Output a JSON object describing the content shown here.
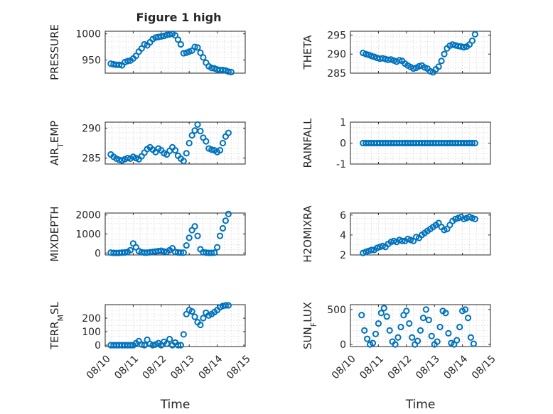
{
  "chart_data": [
    {
      "id": "pressure",
      "type": "scatter",
      "title": "Figure 1 high",
      "ylabel": "PRESSURE",
      "xlabel": "",
      "ylim": [
        925,
        1005
      ],
      "yticks": [
        950,
        1000
      ],
      "ytick_labels": [
        "950",
        "1000"
      ],
      "xlim": [
        0,
        5
      ],
      "xticks": [
        0,
        1,
        2,
        3,
        4,
        5
      ],
      "x": [
        0.2,
        0.3,
        0.4,
        0.5,
        0.6,
        0.7,
        0.8,
        0.9,
        1.0,
        1.1,
        1.2,
        1.3,
        1.4,
        1.5,
        1.6,
        1.7,
        1.8,
        1.9,
        2.0,
        2.1,
        2.2,
        2.3,
        2.4,
        2.5,
        2.6,
        2.7,
        2.8,
        2.9,
        3.0,
        3.1,
        3.2,
        3.3,
        3.4,
        3.5,
        3.6,
        3.7,
        3.8,
        3.9,
        4.0,
        4.1,
        4.2,
        4.3,
        4.4,
        4.5
      ],
      "y": [
        943,
        942,
        941,
        941,
        940,
        946,
        948,
        949,
        953,
        958,
        966,
        972,
        980,
        978,
        984,
        990,
        993,
        994,
        995,
        996,
        998,
        999,
        1000,
        997,
        989,
        980,
        963,
        964,
        966,
        968,
        975,
        974,
        964,
        955,
        945,
        938,
        935,
        934,
        932,
        931,
        931,
        930,
        928,
        927
      ],
      "color": "#0072BD"
    },
    {
      "id": "theta",
      "type": "scatter",
      "title": "",
      "ylabel": "THETA",
      "xlabel": "",
      "ylim": [
        285,
        296
      ],
      "yticks": [
        285,
        290,
        295
      ],
      "ytick_labels": [
        "285",
        "290",
        "295"
      ],
      "xlim": [
        0,
        5
      ],
      "xticks": [
        0,
        1,
        2,
        3,
        4,
        5
      ],
      "x": [
        0.45,
        0.55,
        0.65,
        0.75,
        0.85,
        0.95,
        1.05,
        1.15,
        1.25,
        1.35,
        1.45,
        1.55,
        1.65,
        1.75,
        1.85,
        1.95,
        2.05,
        2.15,
        2.25,
        2.35,
        2.45,
        2.55,
        2.65,
        2.75,
        2.85,
        2.95,
        3.05,
        3.15,
        3.25,
        3.35,
        3.45,
        3.55,
        3.65,
        3.75,
        3.85,
        3.95,
        4.05,
        4.15,
        4.25,
        4.35,
        4.45
      ],
      "y": [
        290.3,
        290.0,
        289.8,
        289.5,
        289.3,
        289.0,
        288.8,
        288.9,
        288.7,
        288.5,
        288.6,
        288.3,
        288.0,
        288.4,
        288.2,
        287.5,
        287.0,
        286.6,
        286.2,
        286.4,
        286.8,
        287.0,
        286.5,
        286.2,
        285.5,
        285.2,
        286.0,
        286.7,
        288.2,
        290.0,
        291.5,
        292.2,
        292.5,
        292.3,
        292.1,
        292.0,
        291.8,
        292.0,
        292.5,
        293.5,
        295.2
      ],
      "color": "#0072BD"
    },
    {
      "id": "air_temp",
      "type": "scatter",
      "title": "",
      "ylabel_main": "AIR",
      "ylabel_sub": "T",
      "ylabel_rest": "EMP",
      "xlabel": "",
      "ylim": [
        284,
        291
      ],
      "yticks": [
        285,
        290
      ],
      "ytick_labels": [
        "285",
        "290"
      ],
      "xlim": [
        0,
        5
      ],
      "xticks": [
        0,
        1,
        2,
        3,
        4,
        5
      ],
      "x": [
        0.2,
        0.3,
        0.4,
        0.5,
        0.6,
        0.7,
        0.8,
        0.9,
        1.0,
        1.1,
        1.2,
        1.3,
        1.4,
        1.5,
        1.6,
        1.7,
        1.8,
        1.9,
        2.0,
        2.1,
        2.2,
        2.3,
        2.4,
        2.5,
        2.6,
        2.7,
        2.8,
        2.9,
        3.0,
        3.1,
        3.2,
        3.3,
        3.4,
        3.5,
        3.6,
        3.7,
        3.8,
        3.9,
        4.0,
        4.1,
        4.2,
        4.3,
        4.4
      ],
      "y": [
        285.6,
        285.2,
        284.9,
        284.7,
        284.6,
        284.8,
        285.0,
        284.9,
        285.2,
        285.0,
        284.8,
        285.3,
        285.9,
        286.5,
        286.8,
        286.4,
        286.0,
        286.6,
        286.3,
        285.8,
        285.6,
        286.2,
        286.8,
        286.3,
        285.4,
        284.9,
        284.5,
        285.8,
        287.5,
        288.8,
        289.6,
        290.6,
        289.5,
        288.4,
        287.8,
        286.6,
        286.4,
        286.3,
        286.0,
        286.3,
        287.5,
        288.6,
        289.2
      ],
      "color": "#0072BD"
    },
    {
      "id": "rainfall",
      "type": "scatter",
      "title": "",
      "ylabel": "RAINFALL",
      "xlabel": "",
      "ylim": [
        -1,
        1
      ],
      "yticks": [
        -1,
        0,
        1
      ],
      "ytick_labels": [
        "-1",
        "0",
        "1"
      ],
      "xlim": [
        0,
        5
      ],
      "xticks": [
        0,
        1,
        2,
        3,
        4,
        5
      ],
      "x": [
        0.45,
        0.55,
        0.65,
        0.75,
        0.85,
        0.95,
        1.05,
        1.15,
        1.25,
        1.35,
        1.45,
        1.55,
        1.65,
        1.75,
        1.85,
        1.95,
        2.05,
        2.15,
        2.25,
        2.35,
        2.45,
        2.55,
        2.65,
        2.75,
        2.85,
        2.95,
        3.05,
        3.15,
        3.25,
        3.35,
        3.45,
        3.55,
        3.65,
        3.75,
        3.85,
        3.95,
        4.05,
        4.15,
        4.25,
        4.35,
        4.45
      ],
      "y": [
        0,
        0,
        0,
        0,
        0,
        0,
        0,
        0,
        0,
        0,
        0,
        0,
        0,
        0,
        0,
        0,
        0,
        0,
        0,
        0,
        0,
        0,
        0,
        0,
        0,
        0,
        0,
        0,
        0,
        0,
        0,
        0,
        0,
        0,
        0,
        0,
        0,
        0,
        0,
        0,
        0
      ],
      "color": "#0072BD"
    },
    {
      "id": "mixdepth",
      "type": "scatter",
      "title": "",
      "ylabel": "MIXDEPTH",
      "xlabel": "",
      "ylim": [
        -100,
        2100
      ],
      "yticks": [
        0,
        1000,
        2000
      ],
      "ytick_labels": [
        "0",
        "1000",
        "2000"
      ],
      "xlim": [
        0,
        5
      ],
      "xticks": [
        0,
        1,
        2,
        3,
        4,
        5
      ],
      "x": [
        0.2,
        0.3,
        0.4,
        0.5,
        0.6,
        0.7,
        0.8,
        0.9,
        1.0,
        1.1,
        1.2,
        1.3,
        1.4,
        1.5,
        1.6,
        1.7,
        1.8,
        1.9,
        2.0,
        2.1,
        2.2,
        2.3,
        2.4,
        2.5,
        2.6,
        2.7,
        2.8,
        2.9,
        3.0,
        3.1,
        3.2,
        3.3,
        3.4,
        3.5,
        3.6,
        3.7,
        3.8,
        3.9,
        4.0,
        4.1,
        4.2,
        4.3,
        4.4
      ],
      "y": [
        20,
        10,
        5,
        10,
        20,
        30,
        60,
        150,
        500,
        300,
        100,
        40,
        20,
        20,
        40,
        60,
        80,
        100,
        120,
        80,
        60,
        150,
        250,
        60,
        30,
        20,
        20,
        400,
        800,
        1200,
        1400,
        900,
        200,
        40,
        20,
        10,
        10,
        20,
        300,
        900,
        1300,
        1700,
        2050
      ],
      "color": "#0072BD"
    },
    {
      "id": "h2omixra",
      "type": "scatter",
      "title": "",
      "ylabel": "H2OMIXRA",
      "xlabel": "",
      "ylim": [
        2,
        6.2
      ],
      "yticks": [
        2,
        4,
        6
      ],
      "ytick_labels": [
        "2",
        "4",
        "6"
      ],
      "xlim": [
        0,
        5
      ],
      "xticks": [
        0,
        1,
        2,
        3,
        4,
        5
      ],
      "x": [
        0.45,
        0.55,
        0.65,
        0.75,
        0.85,
        0.95,
        1.05,
        1.15,
        1.25,
        1.35,
        1.45,
        1.55,
        1.65,
        1.75,
        1.85,
        1.95,
        2.05,
        2.15,
        2.25,
        2.35,
        2.45,
        2.55,
        2.65,
        2.75,
        2.85,
        2.95,
        3.05,
        3.15,
        3.25,
        3.35,
        3.45,
        3.55,
        3.65,
        3.75,
        3.85,
        3.95,
        4.05,
        4.15,
        4.25,
        4.35,
        4.45
      ],
      "y": [
        2.2,
        2.3,
        2.4,
        2.5,
        2.5,
        2.7,
        2.8,
        2.9,
        2.8,
        3.1,
        3.3,
        3.4,
        3.3,
        3.5,
        3.4,
        3.4,
        3.6,
        3.5,
        3.4,
        3.8,
        3.7,
        4.0,
        4.2,
        4.4,
        4.6,
        4.8,
        5.0,
        5.2,
        4.8,
        4.5,
        4.6,
        5.0,
        5.4,
        5.6,
        5.7,
        5.8,
        5.6,
        5.7,
        5.8,
        5.7,
        5.6
      ],
      "color": "#0072BD"
    },
    {
      "id": "terr_msl",
      "type": "scatter",
      "title": "",
      "ylabel_main": "TERR",
      "ylabel_sub": "M",
      "ylabel_rest": "SL",
      "xlabel": "Time",
      "ylim": [
        -10,
        300
      ],
      "yticks": [
        0,
        100,
        200
      ],
      "ytick_labels": [
        "0",
        "100",
        "200"
      ],
      "xlim": [
        0,
        5
      ],
      "xticks": [
        0,
        1,
        2,
        3,
        4,
        5
      ],
      "xtick_labels": [
        "08/10",
        "08/11",
        "08/12",
        "08/13",
        "08/14",
        "08/15"
      ],
      "x": [
        0.2,
        0.3,
        0.4,
        0.5,
        0.6,
        0.7,
        0.8,
        0.9,
        1.0,
        1.1,
        1.2,
        1.3,
        1.4,
        1.5,
        1.6,
        1.7,
        1.8,
        1.9,
        2.0,
        2.1,
        2.2,
        2.3,
        2.4,
        2.5,
        2.6,
        2.7,
        2.8,
        2.9,
        3.0,
        3.1,
        3.2,
        3.3,
        3.4,
        3.5,
        3.6,
        3.7,
        3.8,
        3.9,
        4.0,
        4.1,
        4.2,
        4.3,
        4.4
      ],
      "y": [
        0,
        0,
        0,
        0,
        0,
        0,
        0,
        0,
        0,
        15,
        30,
        5,
        0,
        40,
        10,
        0,
        5,
        15,
        0,
        25,
        10,
        45,
        0,
        20,
        0,
        0,
        80,
        230,
        260,
        250,
        210,
        170,
        150,
        200,
        240,
        220,
        230,
        245,
        260,
        280,
        290,
        295,
        295
      ],
      "color": "#0072BD"
    },
    {
      "id": "sun_flux",
      "type": "scatter",
      "title": "",
      "ylabel_main": "SUN",
      "ylabel_sub": "F",
      "ylabel_rest": "LUX",
      "xlabel": "Time",
      "ylim": [
        -30,
        570
      ],
      "yticks": [
        0,
        500
      ],
      "ytick_labels": [
        "0",
        "500"
      ],
      "xlim": [
        0,
        5
      ],
      "xticks": [
        0,
        1,
        2,
        3,
        4,
        5
      ],
      "xtick_labels": [
        "08/10",
        "08/11",
        "08/12",
        "08/13",
        "08/14",
        "08/15"
      ],
      "x": [
        0.4,
        0.5,
        0.6,
        0.7,
        0.8,
        0.9,
        1.0,
        1.1,
        1.2,
        1.3,
        1.4,
        1.5,
        1.6,
        1.7,
        1.8,
        1.9,
        2.0,
        2.1,
        2.2,
        2.3,
        2.4,
        2.5,
        2.6,
        2.7,
        2.8,
        2.9,
        3.0,
        3.1,
        3.2,
        3.3,
        3.4,
        3.5,
        3.6,
        3.7,
        3.8,
        3.9,
        4.0,
        4.1,
        4.2,
        4.3,
        4.4
      ],
      "y": [
        420,
        200,
        80,
        0,
        20,
        150,
        300,
        450,
        520,
        400,
        200,
        40,
        0,
        100,
        250,
        420,
        480,
        300,
        100,
        0,
        50,
        200,
        380,
        500,
        350,
        120,
        0,
        40,
        250,
        480,
        450,
        160,
        20,
        0,
        60,
        250,
        480,
        500,
        380,
        100,
        10
      ],
      "color": "#0072BD"
    }
  ]
}
